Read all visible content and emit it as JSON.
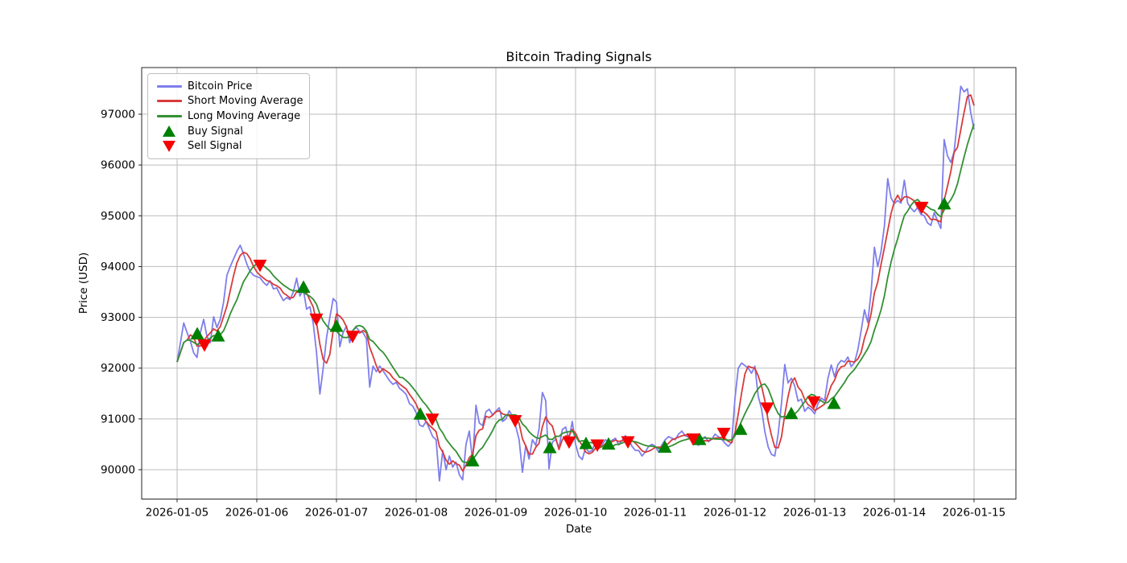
{
  "chart_data": {
    "type": "line",
    "title": "Bitcoin Trading Signals",
    "xlabel": "Date",
    "ylabel": "Price (USD)",
    "x_tick_labels": [
      "2026-01-05",
      "2026-01-06",
      "2026-01-07",
      "2026-01-08",
      "2026-01-09",
      "2026-01-10",
      "2026-01-11",
      "2026-01-12",
      "2026-01-13",
      "2026-01-14",
      "2026-01-15"
    ],
    "y_ticks": [
      90000,
      91000,
      92000,
      93000,
      94000,
      95000,
      96000,
      97000
    ],
    "ylim": [
      89420,
      97920
    ],
    "xlim_days": [
      -0.444,
      10.525
    ],
    "grid": true,
    "colors": {
      "price": "#7e7eec",
      "short_ma": "#d93a3a",
      "long_ma": "#339033",
      "buy": "#008000",
      "sell": "#f50000",
      "grid": "#bbbbbb",
      "spine": "#262626"
    },
    "series": [
      {
        "name": "Bitcoin Price",
        "x_start_day": 0,
        "x_step_days": 0.0416667,
        "values": [
          92120,
          92500,
          92890,
          92700,
          92530,
          92300,
          92210,
          92700,
          92960,
          92620,
          92500,
          93010,
          92800,
          92960,
          93300,
          93830,
          94000,
          94150,
          94300,
          94420,
          94250,
          94050,
          93900,
          93830,
          93800,
          93780,
          93690,
          93630,
          93720,
          93560,
          93580,
          93450,
          93330,
          93390,
          93350,
          93500,
          93770,
          93420,
          93560,
          93160,
          93210,
          92880,
          92300,
          91490,
          92000,
          92600,
          93000,
          93370,
          93300,
          92420,
          92700,
          92830,
          92500,
          92750,
          92800,
          92720,
          92700,
          92580,
          91630,
          92040,
          91930,
          92040,
          91950,
          91850,
          91750,
          91680,
          91720,
          91600,
          91550,
          91480,
          91300,
          91250,
          91120,
          90880,
          90850,
          90950,
          90800,
          90650,
          90590,
          89780,
          90380,
          90000,
          90270,
          90050,
          90150,
          89900,
          89800,
          90500,
          90760,
          90160,
          91270,
          90920,
          90870,
          91140,
          91190,
          91080,
          91150,
          91220,
          90950,
          91000,
          91160,
          91050,
          90850,
          90590,
          89950,
          90480,
          90210,
          90590,
          90480,
          90800,
          91520,
          91360,
          90020,
          90540,
          90600,
          90430,
          90790,
          90840,
          90590,
          90950,
          90500,
          90270,
          90200,
          90430,
          90350,
          90380,
          90540,
          90420,
          90500,
          90590,
          90540,
          90580,
          90620,
          90490,
          90580,
          90670,
          90590,
          90460,
          90380,
          90380,
          90270,
          90350,
          90460,
          90500,
          90460,
          90350,
          90490,
          90590,
          90650,
          90620,
          90590,
          90700,
          90760,
          90670,
          90640,
          90600,
          90560,
          90480,
          90600,
          90650,
          90550,
          90600,
          90700,
          90650,
          90600,
          90520,
          90460,
          90540,
          91400,
          92000,
          92100,
          92050,
          92000,
          91900,
          92040,
          91450,
          91200,
          90750,
          90450,
          90300,
          90270,
          90700,
          91300,
          92070,
          91710,
          91800,
          91650,
          91350,
          91390,
          91150,
          91230,
          91180,
          91100,
          91300,
          91410,
          91360,
          91800,
          92060,
          91830,
          92070,
          92150,
          92120,
          92220,
          92030,
          92110,
          92360,
          92740,
          93150,
          92900,
          93500,
          94380,
          94000,
          94300,
          94800,
          95730,
          95350,
          95240,
          95300,
          95250,
          95700,
          95250,
          95150,
          95080,
          95160,
          95030,
          95000,
          94860,
          94810,
          95060,
          94900,
          94750,
          96500,
          96180,
          96050,
          96260,
          96900,
          97550,
          97440,
          97500,
          97030,
          96700
        ]
      },
      {
        "name": "Short Moving Average",
        "derived": "rolling_mean_of_price",
        "window": 4
      },
      {
        "name": "Long Moving Average",
        "derived": "rolling_mean_of_price",
        "window": 10
      }
    ],
    "signals": {
      "buy": {
        "label": "Buy Signal",
        "marker": "triangle-up",
        "points": [
          [
            0.253,
            92660
          ],
          [
            0.515,
            92620
          ],
          [
            1.586,
            93580
          ],
          [
            2.0,
            92810
          ],
          [
            3.051,
            91080
          ],
          [
            3.707,
            90160
          ],
          [
            4.677,
            90420
          ],
          [
            5.131,
            90500
          ],
          [
            5.414,
            90490
          ],
          [
            6.121,
            90430
          ],
          [
            6.556,
            90580
          ],
          [
            7.071,
            90780
          ],
          [
            7.707,
            91090
          ],
          [
            8.242,
            91290
          ],
          [
            9.626,
            95220
          ]
        ]
      },
      "sell": {
        "label": "Sell Signal",
        "marker": "triangle-down",
        "points": [
          [
            0.343,
            92470
          ],
          [
            1.04,
            94040
          ],
          [
            1.747,
            92980
          ],
          [
            2.202,
            92640
          ],
          [
            3.202,
            91010
          ],
          [
            4.242,
            90980
          ],
          [
            4.919,
            90560
          ],
          [
            5.273,
            90500
          ],
          [
            5.657,
            90565
          ],
          [
            6.475,
            90620
          ],
          [
            6.859,
            90730
          ],
          [
            7.404,
            91230
          ],
          [
            7.99,
            91350
          ],
          [
            9.343,
            95180
          ]
        ]
      }
    },
    "legend": {
      "position": "upper left",
      "entries": [
        "Bitcoin Price",
        "Short Moving Average",
        "Long Moving Average",
        "Buy Signal",
        "Sell Signal"
      ]
    }
  }
}
